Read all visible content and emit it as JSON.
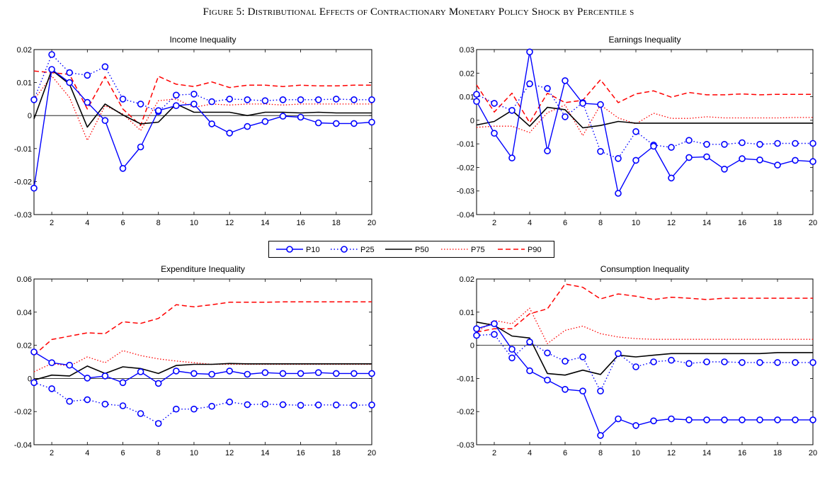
{
  "figure": {
    "title": "Figure 5: Distributional Effects of Contractionary Monetary Policy Shock by Percentile s"
  },
  "legend": {
    "items": [
      "P10",
      "P25",
      "P50",
      "P75",
      "P90"
    ]
  },
  "series_style": {
    "P10": {
      "color": "#0000ff",
      "dash": "",
      "marker": "circle",
      "width": 1.4
    },
    "P25": {
      "color": "#0000ff",
      "dash": "1.5,3",
      "marker": "circle",
      "width": 1.4
    },
    "P50": {
      "color": "#000000",
      "dash": "",
      "marker": "none",
      "width": 1.6
    },
    "P75": {
      "color": "#ff0000",
      "dash": "1.5,2.5",
      "marker": "none",
      "width": 1.3
    },
    "P90": {
      "color": "#ff0000",
      "dash": "7,4",
      "marker": "none",
      "width": 1.5
    }
  },
  "chart_data": [
    {
      "type": "line",
      "title": "Income Inequality",
      "x": [
        1,
        2,
        3,
        4,
        5,
        6,
        7,
        8,
        9,
        10,
        11,
        12,
        13,
        14,
        15,
        16,
        17,
        18,
        19,
        20
      ],
      "xlim": [
        1,
        20
      ],
      "ylim": [
        -0.03,
        0.02
      ],
      "xticks": [
        2,
        4,
        6,
        8,
        10,
        12,
        14,
        16,
        18,
        20
      ],
      "xtick_labels": [
        "2",
        "4",
        "6",
        "8",
        "10",
        "12",
        "14",
        "16",
        "18",
        "20"
      ],
      "yticks": [
        -0.03,
        -0.02,
        -0.01,
        0,
        0.01,
        0.02
      ],
      "ytick_labels": [
        "-0.03",
        "-0.02",
        "-0.01",
        "0",
        "0.01",
        "0.02"
      ],
      "zero_line": true,
      "series": [
        {
          "name": "P10",
          "values": [
            -0.022,
            0.014,
            0.01,
            0.004,
            -0.0015,
            -0.016,
            -0.0095,
            0.0015,
            0.003,
            0.0035,
            -0.0025,
            -0.0053,
            -0.0033,
            -0.0018,
            -0.0002,
            -0.0005,
            -0.0022,
            -0.0024,
            -0.0024,
            -0.002
          ]
        },
        {
          "name": "P25",
          "values": [
            0.0048,
            0.0185,
            0.013,
            0.0122,
            0.0148,
            0.005,
            0.0035,
            0.0012,
            0.0062,
            0.0065,
            0.0042,
            0.005,
            0.0048,
            0.0045,
            0.0048,
            0.0048,
            0.0048,
            0.005,
            0.0048,
            0.0048
          ]
        },
        {
          "name": "P50",
          "values": [
            -0.001,
            0.0138,
            0.0095,
            -0.0035,
            0.0035,
            0.0002,
            -0.0025,
            -0.002,
            0.0035,
            0.001,
            0.001,
            0.001,
            0.0,
            0.001,
            0.001,
            0.0008,
            0.001,
            0.0008,
            0.0008,
            0.0008
          ]
        },
        {
          "name": "P75",
          "values": [
            0.0048,
            0.012,
            0.0055,
            -0.0075,
            0.003,
            0.0005,
            -0.0045,
            0.0045,
            0.005,
            0.0025,
            0.0035,
            0.0032,
            0.0035,
            0.0035,
            0.0032,
            0.0035,
            0.0035,
            0.0035,
            0.0035,
            0.0035
          ]
        },
        {
          "name": "P90",
          "values": [
            0.0135,
            0.013,
            0.0125,
            0.002,
            0.0118,
            0.002,
            -0.003,
            0.0119,
            0.0095,
            0.0088,
            0.0102,
            0.0085,
            0.0092,
            0.0092,
            0.0088,
            0.0092,
            0.009,
            0.009,
            0.0092,
            0.0092
          ]
        }
      ]
    },
    {
      "type": "line",
      "title": "Earnings Inequality",
      "x": [
        1,
        2,
        3,
        4,
        5,
        6,
        7,
        8,
        9,
        10,
        11,
        12,
        13,
        14,
        15,
        16,
        17,
        18,
        19,
        20
      ],
      "xlim": [
        1,
        20
      ],
      "ylim": [
        -0.04,
        0.03
      ],
      "xticks": [
        2,
        4,
        6,
        8,
        10,
        12,
        14,
        16,
        18,
        20
      ],
      "xtick_labels": [
        "2",
        "4",
        "6",
        "8",
        "10",
        "12",
        "14",
        "16",
        "18",
        "20"
      ],
      "yticks": [
        -0.04,
        -0.03,
        -0.02,
        -0.01,
        0,
        0.01,
        0.02,
        0.03
      ],
      "ytick_labels": [
        "-0.04",
        "-0.03",
        "-0.02",
        "-0.01",
        "0",
        "0.01",
        "0.02",
        "0.03"
      ],
      "zero_line": false,
      "series": [
        {
          "name": "P10",
          "values": [
            0.008,
            -0.0055,
            -0.016,
            0.029,
            -0.013,
            0.0168,
            0.0072,
            0.0067,
            -0.031,
            -0.017,
            -0.011,
            -0.0245,
            -0.0158,
            -0.0155,
            -0.0207,
            -0.0163,
            -0.0168,
            -0.019,
            -0.017,
            -0.0175
          ]
        },
        {
          "name": "P25",
          "values": [
            0.011,
            0.0072,
            0.0042,
            0.0155,
            0.0135,
            0.0015,
            0.0075,
            -0.0132,
            -0.0162,
            -0.0048,
            -0.0105,
            -0.0115,
            -0.0085,
            -0.0102,
            -0.0102,
            -0.0095,
            -0.0102,
            -0.0098,
            -0.0098,
            -0.0098
          ]
        },
        {
          "name": "P50",
          "values": [
            -0.002,
            -0.0005,
            0.0042,
            -0.0025,
            0.0055,
            0.0045,
            -0.0032,
            -0.0022,
            -0.0005,
            -0.0012,
            -0.0012,
            -0.0012,
            -0.0012,
            -0.0012,
            -0.0012,
            -0.0012,
            -0.0012,
            -0.0012,
            -0.0012,
            -0.0012
          ]
        },
        {
          "name": "P75",
          "values": [
            -0.003,
            -0.0025,
            -0.0025,
            -0.0052,
            0.0032,
            0.0065,
            -0.0065,
            0.0065,
            0.001,
            -0.0015,
            0.003,
            0.0008,
            0.0008,
            0.0015,
            0.001,
            0.001,
            0.001,
            0.001,
            0.0012,
            0.0012
          ]
        },
        {
          "name": "P90",
          "values": [
            0.015,
            0.0035,
            0.0115,
            -0.001,
            0.0115,
            0.0075,
            0.0085,
            0.0172,
            0.0075,
            0.0112,
            0.0125,
            0.0098,
            0.0118,
            0.0108,
            0.0108,
            0.0112,
            0.0108,
            0.011,
            0.011,
            0.011
          ]
        }
      ]
    },
    {
      "type": "line",
      "title": "Expenditure Inequality",
      "x": [
        1,
        2,
        3,
        4,
        5,
        6,
        7,
        8,
        9,
        10,
        11,
        12,
        13,
        14,
        15,
        16,
        17,
        18,
        19,
        20
      ],
      "xlim": [
        1,
        20
      ],
      "ylim": [
        -0.04,
        0.06
      ],
      "xticks": [
        2,
        4,
        6,
        8,
        10,
        12,
        14,
        16,
        18,
        20
      ],
      "xtick_labels": [
        "2",
        "4",
        "6",
        "8",
        "10",
        "12",
        "14",
        "16",
        "18",
        "20"
      ],
      "yticks": [
        -0.04,
        -0.02,
        0,
        0.02,
        0.04,
        0.06
      ],
      "ytick_labels": [
        "-0.04",
        "-0.02",
        "0",
        "0.02",
        "0.04",
        "0.06"
      ],
      "zero_line": true,
      "series": [
        {
          "name": "P10",
          "values": [
            0.016,
            0.0095,
            0.008,
            0.0002,
            0.0015,
            -0.0025,
            0.004,
            -0.003,
            0.0045,
            0.003,
            0.0025,
            0.0045,
            0.0025,
            0.0035,
            0.003,
            0.003,
            0.0035,
            0.003,
            0.003,
            0.003
          ]
        },
        {
          "name": "P25",
          "values": [
            -0.0025,
            -0.0062,
            -0.0138,
            -0.0128,
            -0.0155,
            -0.0165,
            -0.0212,
            -0.0272,
            -0.0185,
            -0.0185,
            -0.0168,
            -0.0142,
            -0.0158,
            -0.0155,
            -0.0158,
            -0.0162,
            -0.016,
            -0.016,
            -0.0162,
            -0.016
          ]
        },
        {
          "name": "P50",
          "values": [
            -0.001,
            0.002,
            0.0015,
            0.0075,
            0.003,
            0.007,
            0.006,
            0.003,
            0.0078,
            0.0085,
            0.0085,
            0.009,
            0.0088,
            0.0088,
            0.0088,
            0.0088,
            0.0088,
            0.0088,
            0.0088,
            0.0088
          ]
        },
        {
          "name": "P75",
          "values": [
            0.004,
            0.009,
            0.0075,
            0.013,
            0.0095,
            0.0168,
            0.0138,
            0.0118,
            0.0105,
            0.0095,
            0.0085,
            0.0085,
            0.0085,
            0.0085,
            0.0085,
            0.0085,
            0.0085,
            0.0085,
            0.0085,
            0.0085
          ]
        },
        {
          "name": "P90",
          "values": [
            0.014,
            0.0235,
            0.0255,
            0.0275,
            0.027,
            0.0342,
            0.0332,
            0.0362,
            0.0445,
            0.0432,
            0.0445,
            0.046,
            0.046,
            0.046,
            0.0462,
            0.0462,
            0.0462,
            0.0462,
            0.0462,
            0.0462
          ]
        }
      ]
    },
    {
      "type": "line",
      "title": "Consumption Inequality",
      "x": [
        1,
        2,
        3,
        4,
        5,
        6,
        7,
        8,
        9,
        10,
        11,
        12,
        13,
        14,
        15,
        16,
        17,
        18,
        19,
        20
      ],
      "xlim": [
        1,
        20
      ],
      "ylim": [
        -0.03,
        0.02
      ],
      "xticks": [
        2,
        4,
        6,
        8,
        10,
        12,
        14,
        16,
        18,
        20
      ],
      "xtick_labels": [
        "2",
        "4",
        "6",
        "8",
        "10",
        "12",
        "14",
        "16",
        "18",
        "20"
      ],
      "yticks": [
        -0.03,
        -0.02,
        -0.01,
        0,
        0.01,
        0.02
      ],
      "ytick_labels": [
        "-0.03",
        "-0.02",
        "-0.01",
        "0",
        "0.01",
        "0.02"
      ],
      "zero_line": true,
      "series": [
        {
          "name": "P10",
          "values": [
            0.005,
            0.0065,
            -0.0012,
            -0.0077,
            -0.0105,
            -0.0133,
            -0.0138,
            -0.0272,
            -0.0222,
            -0.0242,
            -0.0228,
            -0.0222,
            -0.0225,
            -0.0225,
            -0.0225,
            -0.0225,
            -0.0225,
            -0.0225,
            -0.0225,
            -0.0225
          ]
        },
        {
          "name": "P25",
          "values": [
            0.003,
            0.0033,
            -0.0038,
            0.001,
            -0.0023,
            -0.0048,
            -0.0035,
            -0.0138,
            -0.0025,
            -0.0065,
            -0.005,
            -0.0045,
            -0.0055,
            -0.005,
            -0.005,
            -0.0052,
            -0.0052,
            -0.0052,
            -0.0052,
            -0.0052
          ]
        },
        {
          "name": "P50",
          "values": [
            0.007,
            0.006,
            0.0028,
            0.0022,
            -0.0085,
            -0.009,
            -0.0075,
            -0.0088,
            -0.003,
            -0.0035,
            -0.003,
            -0.0025,
            -0.0025,
            -0.0025,
            -0.0025,
            -0.0025,
            -0.0025,
            -0.0022,
            -0.0022,
            -0.0022
          ]
        },
        {
          "name": "P75",
          "values": [
            0.004,
            0.0075,
            0.0065,
            0.0112,
            0.0005,
            0.0045,
            0.0058,
            0.0035,
            0.0025,
            0.002,
            0.0018,
            0.0018,
            0.0018,
            0.0018,
            0.0018,
            0.0018,
            0.0018,
            0.0018,
            0.0018,
            0.0018
          ]
        },
        {
          "name": "P90",
          "values": [
            0.004,
            0.005,
            0.005,
            0.0095,
            0.011,
            0.0185,
            0.0175,
            0.014,
            0.0155,
            0.0148,
            0.0138,
            0.0145,
            0.0142,
            0.0138,
            0.0142,
            0.0142,
            0.0142,
            0.0142,
            0.0142,
            0.0142
          ]
        }
      ]
    }
  ]
}
